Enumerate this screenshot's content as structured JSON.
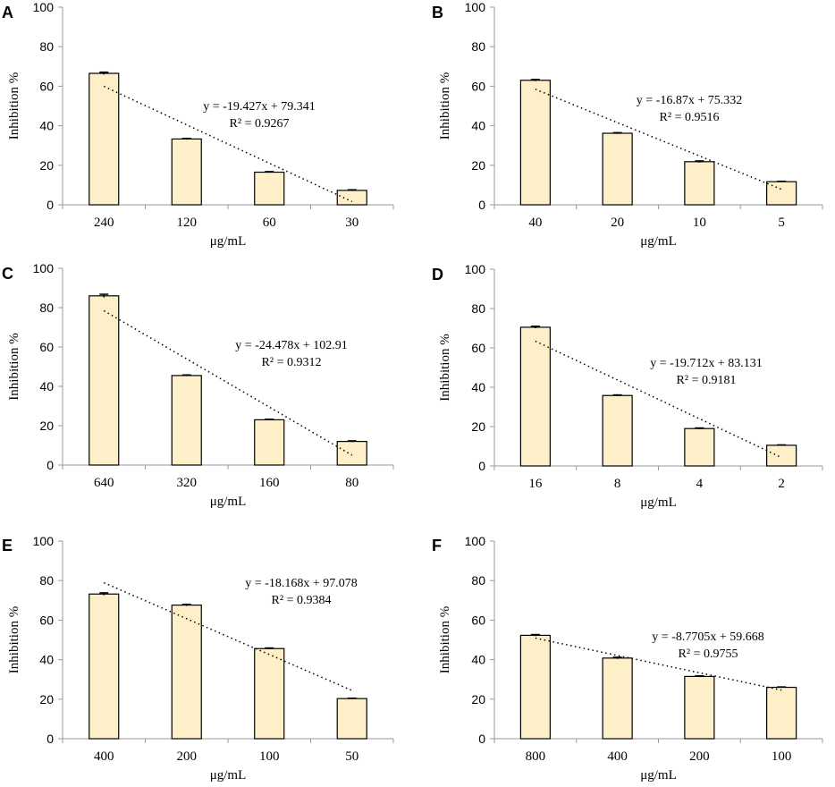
{
  "chart_data": [
    {
      "type": "bar",
      "panel": "A",
      "categories": [
        "240",
        "120",
        "60",
        "30"
      ],
      "values": [
        66.5,
        33.3,
        16.5,
        7.3
      ],
      "errors": [
        0.6,
        0.3,
        0.3,
        0.3
      ],
      "xlabel": "μg/mL",
      "ylabel": "Inhibition %",
      "ylim": [
        0,
        100
      ],
      "yticks": [
        0,
        20,
        40,
        60,
        80,
        100
      ],
      "trendline": {
        "slope": -19.427,
        "intercept": 79.341,
        "equation": "y = -19.427x + 79.341",
        "r2": "R² = 0.9267"
      }
    },
    {
      "type": "bar",
      "panel": "B",
      "categories": [
        "40",
        "20",
        "10",
        "5"
      ],
      "values": [
        63.0,
        36.2,
        21.8,
        11.7
      ],
      "errors": [
        0.4,
        0.3,
        0.4,
        0.2
      ],
      "xlabel": "μg/mL",
      "ylabel": "Inhibition %",
      "ylim": [
        0,
        100
      ],
      "yticks": [
        0,
        20,
        40,
        60,
        80,
        100
      ],
      "trendline": {
        "slope": -16.87,
        "intercept": 75.332,
        "equation": "y = -16.87x + 75.332",
        "r2": "R² = 0.9516"
      }
    },
    {
      "type": "bar",
      "panel": "C",
      "categories": [
        "640",
        "320",
        "160",
        "80"
      ],
      "values": [
        86.0,
        45.5,
        23.0,
        12.0
      ],
      "errors": [
        0.8,
        0.3,
        0.3,
        0.3
      ],
      "xlabel": "μg/mL",
      "ylabel": "Inhibition %",
      "ylim": [
        0,
        100
      ],
      "yticks": [
        0,
        20,
        40,
        60,
        80,
        100
      ],
      "trendline": {
        "slope": -24.478,
        "intercept": 102.91,
        "equation": "y = -24.478x + 102.91",
        "r2": "R² = 0.9312"
      }
    },
    {
      "type": "bar",
      "panel": "D",
      "categories": [
        "16",
        "8",
        "4",
        "2"
      ],
      "values": [
        70.5,
        35.8,
        19.0,
        10.5
      ],
      "errors": [
        0.5,
        0.3,
        0.3,
        0.2
      ],
      "xlabel": "μg/mL",
      "ylabel": "Inhibition %",
      "ylim": [
        0,
        100
      ],
      "yticks": [
        0,
        20,
        40,
        60,
        80,
        100
      ],
      "trendline": {
        "slope": -19.712,
        "intercept": 83.131,
        "equation": "y = -19.712x + 83.131",
        "r2": "R² = 0.9181"
      }
    },
    {
      "type": "bar",
      "panel": "E",
      "categories": [
        "400",
        "200",
        "100",
        "50"
      ],
      "values": [
        73.2,
        67.6,
        45.6,
        20.3
      ],
      "errors": [
        0.6,
        0.4,
        0.3,
        0.2
      ],
      "xlabel": "μg/mL",
      "ylabel": "Inhibition %",
      "ylim": [
        0,
        100
      ],
      "yticks": [
        0,
        20,
        40,
        60,
        80,
        100
      ],
      "trendline": {
        "slope": -18.168,
        "intercept": 97.078,
        "equation": "y = -18.168x + 97.078",
        "r2": "R² = 0.9384"
      }
    },
    {
      "type": "bar",
      "panel": "F",
      "categories": [
        "800",
        "400",
        "200",
        "100"
      ],
      "values": [
        52.3,
        40.8,
        31.5,
        26.0
      ],
      "errors": [
        0.4,
        0.4,
        0.3,
        0.2
      ],
      "xlabel": "μg/mL",
      "ylabel": "Inhibition %",
      "ylim": [
        0,
        100
      ],
      "yticks": [
        0,
        20,
        40,
        60,
        80,
        100
      ],
      "trendline": {
        "slope": -8.7705,
        "intercept": 59.668,
        "equation": "y = -8.7705x + 59.668",
        "r2": "R² = 0.9755"
      }
    }
  ]
}
